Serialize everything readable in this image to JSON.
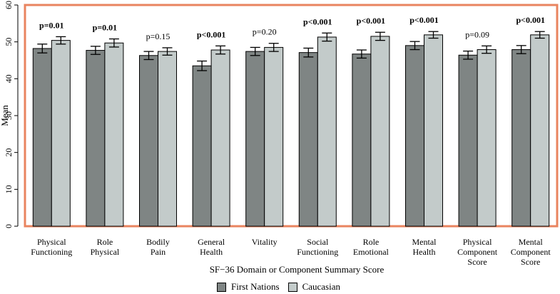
{
  "chart_data": {
    "type": "bar",
    "ylabel": "Mean",
    "xlabel": "SF−36 Domain or Component Summary Score",
    "ylim": [
      0,
      60
    ],
    "yticks": [
      0,
      10,
      20,
      30,
      40,
      50,
      60
    ],
    "categories": [
      [
        "Physical",
        "Functioning"
      ],
      [
        "Role",
        "Physical"
      ],
      [
        "Bodily",
        "Pain"
      ],
      [
        "General",
        "Health"
      ],
      [
        "Vitality"
      ],
      [
        "Social",
        "Functioning"
      ],
      [
        "Role",
        "Emotional"
      ],
      [
        "Mental",
        "Health"
      ],
      [
        "Physical",
        "Component",
        "Score"
      ],
      [
        "Mental",
        "Component",
        "Score"
      ]
    ],
    "series": [
      {
        "name": "First Nations",
        "color": "#7f8584",
        "values": [
          48.2,
          47.7,
          46.3,
          43.5,
          47.4,
          47.1,
          46.7,
          49.0,
          46.4,
          47.9
        ],
        "err": [
          1.2,
          1.1,
          1.1,
          1.3,
          1.1,
          1.2,
          1.1,
          1.1,
          1.1,
          1.1
        ]
      },
      {
        "name": "Caucasian",
        "color": "#c3cbca",
        "values": [
          50.4,
          49.7,
          47.4,
          47.8,
          48.5,
          51.3,
          51.5,
          51.9,
          47.9,
          51.9
        ],
        "err": [
          1.0,
          1.1,
          1.0,
          1.1,
          1.1,
          1.1,
          1.1,
          0.9,
          1.0,
          0.9
        ]
      }
    ],
    "annotations": [
      {
        "text": "p=0.01",
        "bold": true
      },
      {
        "text": "p=0.01",
        "bold": true
      },
      {
        "text": "p=0.15",
        "bold": false
      },
      {
        "text": "p<0.001",
        "bold": true
      },
      {
        "text": "p=0.20",
        "bold": false
      },
      {
        "text": "p<0.001",
        "bold": true
      },
      {
        "text": "p<0.001",
        "bold": true
      },
      {
        "text": "p<0.001",
        "bold": true
      },
      {
        "text": "p=0.09",
        "bold": false
      },
      {
        "text": "p<0.001",
        "bold": true
      }
    ],
    "frame_color": "#e9845f",
    "legend_position": "bottom"
  }
}
